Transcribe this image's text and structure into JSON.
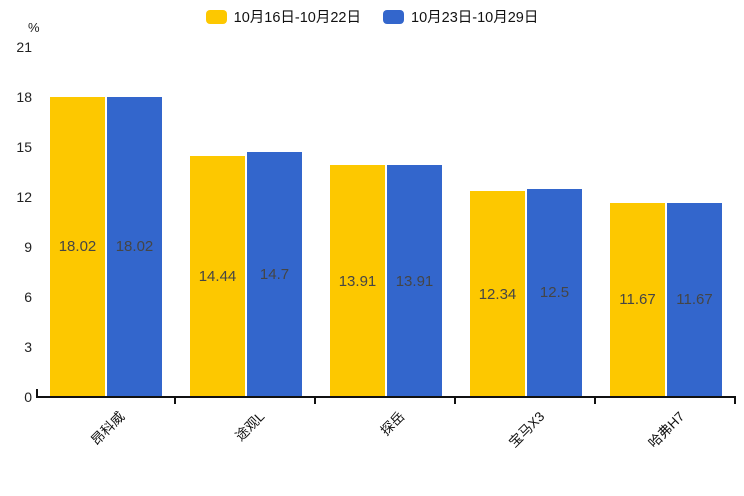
{
  "chart_data": {
    "type": "bar",
    "title": "",
    "unit_label": "%",
    "categories": [
      "昂科威",
      "途观L",
      "探岳",
      "宝马X3",
      "哈弗H7"
    ],
    "series": [
      {
        "name": "10月16日-10月22日",
        "color": "#FDC800",
        "values": [
          18.02,
          14.44,
          13.91,
          12.34,
          11.67
        ]
      },
      {
        "name": "10月23日-10月29日",
        "color": "#3366CC",
        "values": [
          18.02,
          14.7,
          13.91,
          12.5,
          11.67
        ]
      }
    ],
    "ylim": [
      0,
      21
    ],
    "yticks": [
      0,
      3,
      6,
      9,
      12,
      15,
      18,
      21
    ],
    "legend_position": "top",
    "grid": false,
    "value_labels": "inside-center",
    "x_label_rotation_deg": -45,
    "axis_color": "#111111",
    "value_label_color": "#454545"
  }
}
